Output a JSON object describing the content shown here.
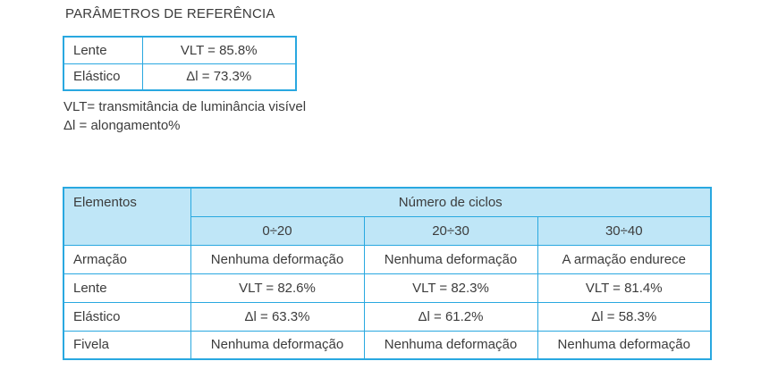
{
  "page": {
    "title": "PARÂMETROS DE REFERÊNCIA"
  },
  "reference_table": {
    "rows": [
      {
        "label": "Lente",
        "value": "VLT = 85.8%"
      },
      {
        "label": "Elástico",
        "value": "Δl = 73.3%"
      }
    ]
  },
  "legend": {
    "line1": "VLT= transmitância de luminância visível",
    "line2": "Δl = alongamento%"
  },
  "cycles_table": {
    "corner_header": "Elementos",
    "group_header": "Número de ciclos",
    "column_headers": [
      "0÷20",
      "20÷30",
      "30÷40"
    ],
    "rows": [
      {
        "label": "Armação",
        "values": [
          "Nenhuma deformação",
          "Nenhuma deformação",
          "A armação endurece"
        ]
      },
      {
        "label": "Lente",
        "values": [
          "VLT = 82.6%",
          "VLT = 82.3%",
          "VLT = 81.4%"
        ]
      },
      {
        "label": "Elástico",
        "values": [
          "Δl = 63.3%",
          "Δl = 61.2%",
          "Δl = 58.3%"
        ]
      },
      {
        "label": "Fivela",
        "values": [
          "Nenhuma deformação",
          "Nenhuma deformação",
          "Nenhuma deformação"
        ]
      }
    ]
  },
  "colors": {
    "border_cyan": "#29a8e0",
    "header_fill": "#bfe6f7",
    "text": "#3c3c3c"
  }
}
